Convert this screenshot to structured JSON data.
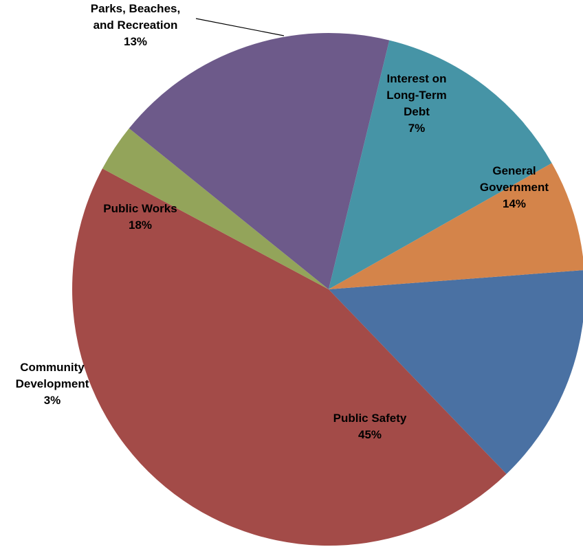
{
  "chart_data": {
    "type": "pie",
    "start_angle_deg": 85.7,
    "direction": "clockwise",
    "slices": [
      {
        "key": "general-government",
        "label_lines": [
          "General",
          "Government"
        ],
        "pct_label": "14%",
        "value": 14,
        "color": "#4a71a3"
      },
      {
        "key": "public-safety",
        "label_lines": [
          "Public Safety"
        ],
        "pct_label": "45%",
        "value": 45,
        "color": "#a34b48"
      },
      {
        "key": "community-development",
        "label_lines": [
          "Community",
          "Development"
        ],
        "pct_label": "3%",
        "value": 3,
        "color": "#93a45a"
      },
      {
        "key": "public-works",
        "label_lines": [
          "Public Works"
        ],
        "pct_label": "18%",
        "value": 18,
        "color": "#6d5a8a"
      },
      {
        "key": "parks-beaches-recreation",
        "label_lines": [
          "Parks, Beaches,",
          "and Recreation"
        ],
        "pct_label": "13%",
        "value": 13,
        "color": "#4694a6"
      },
      {
        "key": "interest-long-term-debt",
        "label_lines": [
          "Interest on",
          "Long-Term",
          "Debt"
        ],
        "pct_label": "7%",
        "value": 7,
        "color": "#d4844a"
      }
    ]
  }
}
